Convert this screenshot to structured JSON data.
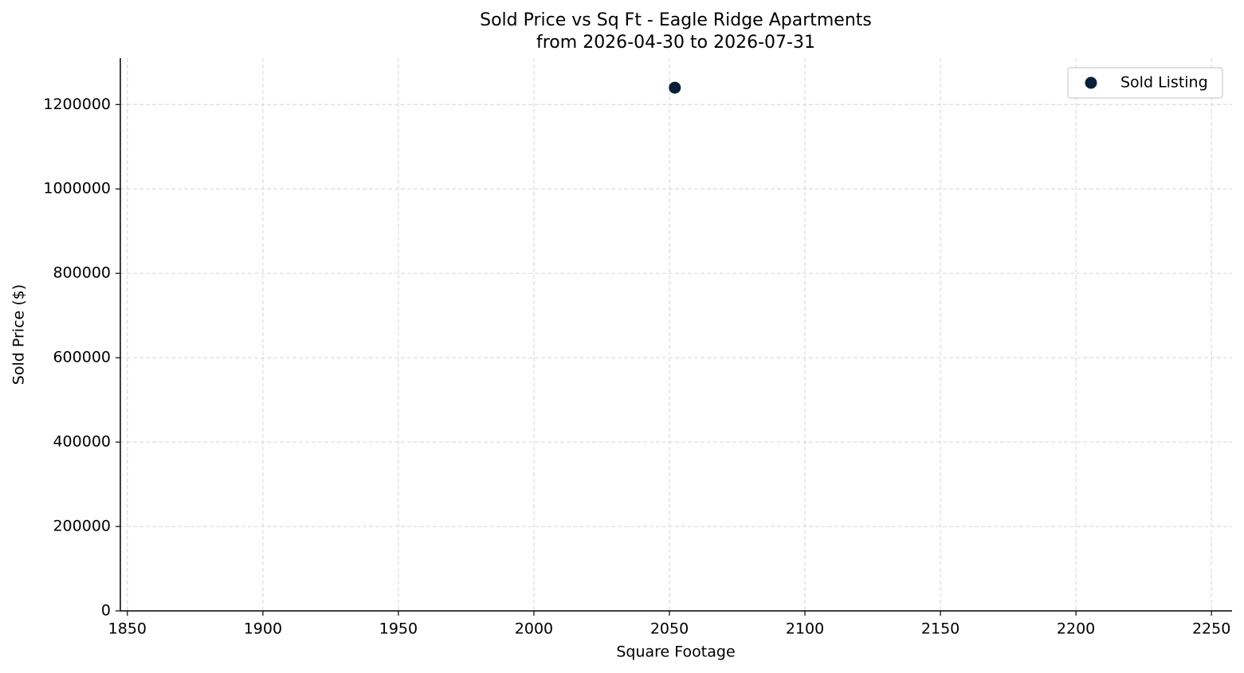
{
  "chart_data": {
    "type": "scatter",
    "title": "Sold Price vs Sq Ft - Eagle Ridge Apartments",
    "subtitle": "from 2026-04-30 to 2026-07-31",
    "x_label": "Square Footage",
    "y_label": "Sold Price ($)",
    "series": [
      {
        "name": "Sold Listing",
        "color": "#0b1f3a",
        "x": [
          2052
        ],
        "values": [
          1240000
        ]
      }
    ],
    "xlim": [
      1847.4,
      2257.6
    ],
    "xticks": [
      1850,
      1900,
      1950,
      2000,
      2050,
      2100,
      2150,
      2200,
      2250
    ],
    "ylim": [
      0,
      1310000
    ],
    "yticks": [
      0,
      200000,
      400000,
      600000,
      800000,
      1000000,
      1200000
    ],
    "grid": true,
    "legend": "upper right"
  }
}
